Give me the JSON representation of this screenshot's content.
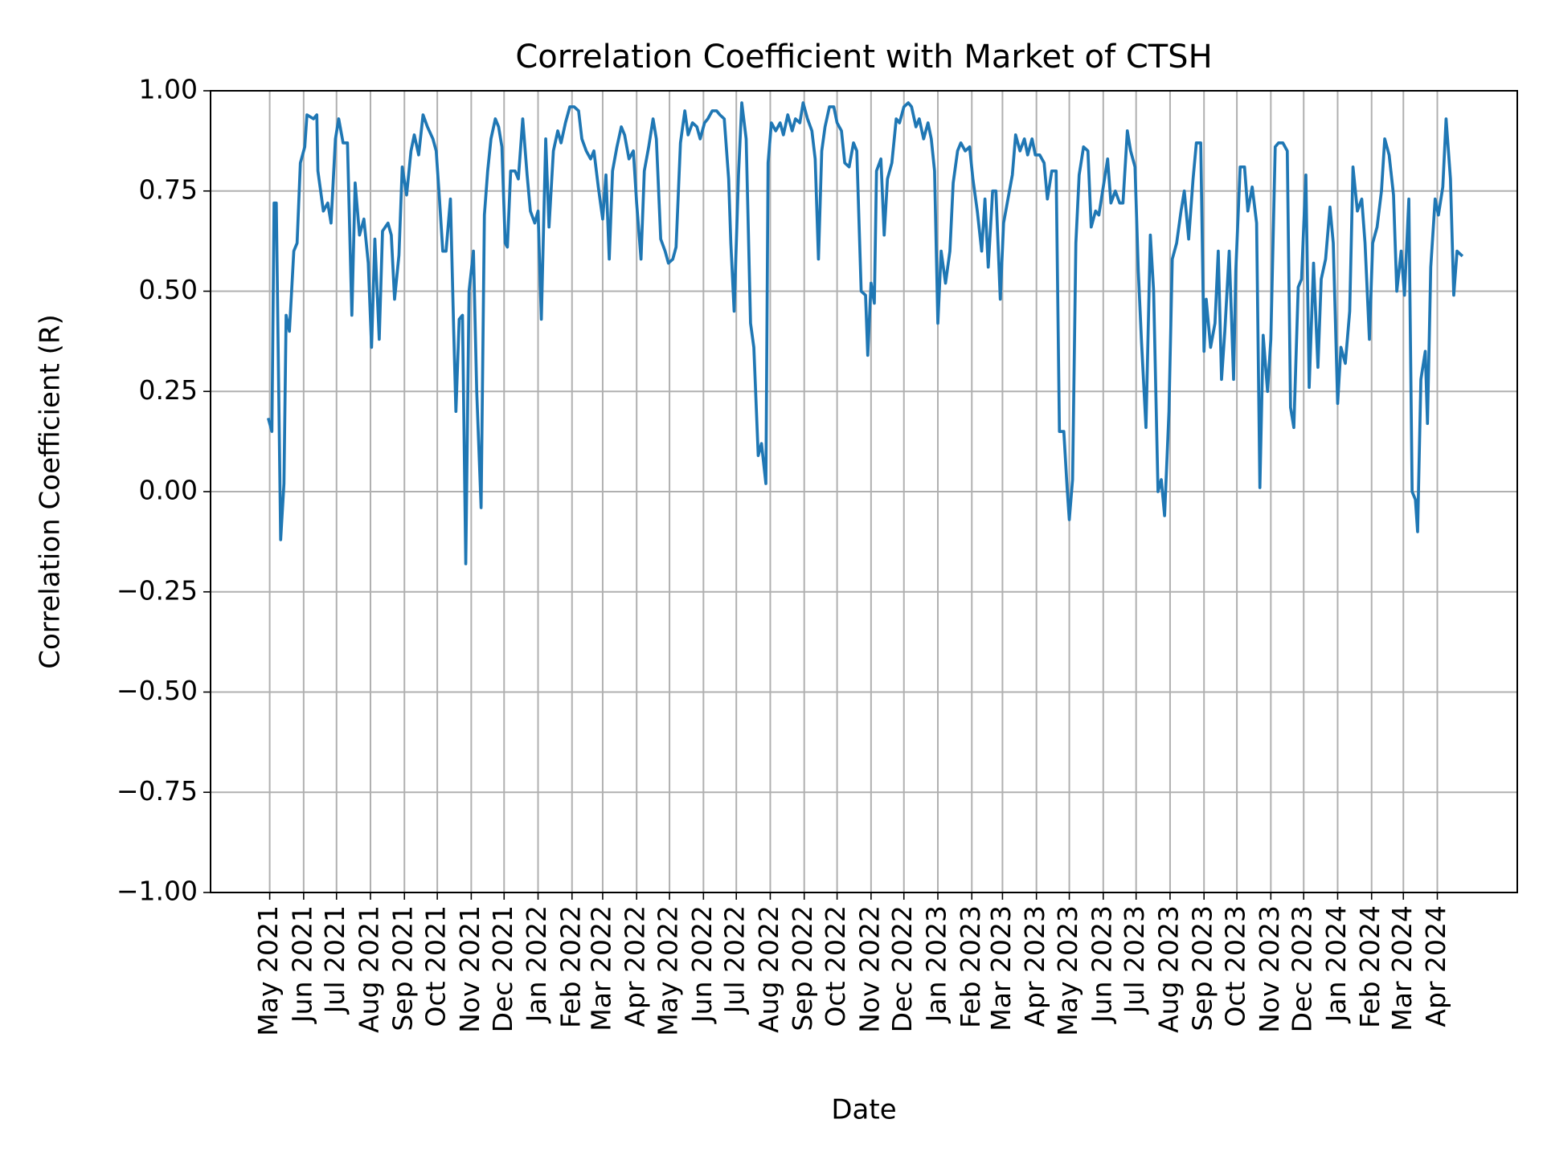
{
  "chart_data": {
    "type": "line",
    "title": "Correlation Coefficient with Market of CTSH",
    "x_label": "Date",
    "y_label": "Correlation Coefficient (R)",
    "color": "#1f77b4",
    "grid": true,
    "xlim": [
      -54,
      1139
    ],
    "ylim": [
      -1,
      1
    ],
    "xticks": [
      {
        "value": 0,
        "label": "May 2021"
      },
      {
        "value": 31,
        "label": "Jun 2021"
      },
      {
        "value": 61,
        "label": "Jul 2021"
      },
      {
        "value": 92,
        "label": "Aug 2021"
      },
      {
        "value": 123,
        "label": "Sep 2021"
      },
      {
        "value": 153,
        "label": "Oct 2021"
      },
      {
        "value": 184,
        "label": "Nov 2021"
      },
      {
        "value": 214,
        "label": "Dec 2021"
      },
      {
        "value": 245,
        "label": "Jan 2022"
      },
      {
        "value": 276,
        "label": "Feb 2022"
      },
      {
        "value": 304,
        "label": "Mar 2022"
      },
      {
        "value": 335,
        "label": "Apr 2022"
      },
      {
        "value": 365,
        "label": "May 2022"
      },
      {
        "value": 396,
        "label": "Jun 2022"
      },
      {
        "value": 426,
        "label": "Jul 2022"
      },
      {
        "value": 457,
        "label": "Aug 2022"
      },
      {
        "value": 488,
        "label": "Sep 2022"
      },
      {
        "value": 518,
        "label": "Oct 2022"
      },
      {
        "value": 549,
        "label": "Nov 2022"
      },
      {
        "value": 579,
        "label": "Dec 2022"
      },
      {
        "value": 610,
        "label": "Jan 2023"
      },
      {
        "value": 641,
        "label": "Feb 2023"
      },
      {
        "value": 669,
        "label": "Mar 2023"
      },
      {
        "value": 700,
        "label": "Apr 2023"
      },
      {
        "value": 730,
        "label": "May 2023"
      },
      {
        "value": 761,
        "label": "Jun 2023"
      },
      {
        "value": 791,
        "label": "Jul 2023"
      },
      {
        "value": 822,
        "label": "Aug 2023"
      },
      {
        "value": 853,
        "label": "Sep 2023"
      },
      {
        "value": 883,
        "label": "Oct 2023"
      },
      {
        "value": 914,
        "label": "Nov 2023"
      },
      {
        "value": 944,
        "label": "Dec 2023"
      },
      {
        "value": 975,
        "label": "Jan 2024"
      },
      {
        "value": 1006,
        "label": "Feb 2024"
      },
      {
        "value": 1035,
        "label": "Mar 2024"
      },
      {
        "value": 1066,
        "label": "Apr 2024"
      }
    ],
    "yticks": [
      {
        "value": -1,
        "label": "−1.00"
      },
      {
        "value": -0.75,
        "label": "−0.75"
      },
      {
        "value": -0.5,
        "label": "−0.50"
      },
      {
        "value": -0.25,
        "label": "−0.25"
      },
      {
        "value": 0,
        "label": "0.00"
      },
      {
        "value": 0.25,
        "label": "0.25"
      },
      {
        "value": 0.5,
        "label": "0.50"
      },
      {
        "value": 0.75,
        "label": "0.75"
      },
      {
        "value": 1,
        "label": "1.00"
      }
    ],
    "x": [
      -1,
      2,
      4,
      6,
      10,
      13,
      15,
      18,
      22,
      25,
      28,
      32,
      34,
      40,
      43,
      44,
      49,
      53,
      56,
      60,
      63,
      67,
      71,
      75,
      78,
      82,
      86,
      90,
      93,
      96,
      100,
      103,
      108,
      111,
      114,
      118,
      121,
      125,
      129,
      132,
      136,
      140,
      144,
      149,
      152,
      155,
      158,
      161,
      165,
      168,
      170,
      173,
      176,
      179,
      182,
      186,
      189,
      193,
      196,
      199,
      202,
      206,
      209,
      212,
      215,
      217,
      220,
      224,
      227,
      231,
      235,
      238,
      242,
      245,
      248,
      252,
      255,
      259,
      263,
      266,
      270,
      274,
      278,
      282,
      285,
      289,
      293,
      296,
      300,
      304,
      307,
      310,
      313,
      317,
      321,
      324,
      328,
      332,
      335,
      339,
      342,
      346,
      350,
      353,
      357,
      361,
      364,
      368,
      371,
      375,
      379,
      382,
      386,
      390,
      393,
      397,
      400,
      404,
      408,
      411,
      415,
      419,
      421,
      424,
      428,
      431,
      435,
      439,
      442,
      446,
      449,
      453,
      455,
      458,
      462,
      466,
      469,
      473,
      477,
      480,
      484,
      487,
      491,
      495,
      498,
      501,
      504,
      507,
      511,
      515,
      518,
      522,
      525,
      529,
      533,
      536,
      540,
      544,
      546,
      549,
      552,
      554,
      558,
      561,
      564,
      568,
      572,
      575,
      579,
      583,
      586,
      590,
      593,
      597,
      601,
      604,
      607,
      610,
      613,
      617,
      621,
      624,
      628,
      631,
      635,
      639,
      642,
      646,
      650,
      653,
      656,
      660,
      663,
      667,
      670,
      674,
      678,
      681,
      685,
      689,
      692,
      696,
      699,
      703,
      707,
      710,
      714,
      718,
      721,
      725,
      728,
      730,
      733,
      736,
      739,
      743,
      747,
      750,
      754,
      757,
      761,
      765,
      768,
      772,
      776,
      779,
      783,
      786,
      790,
      793,
      796,
      800,
      804,
      807,
      811,
      814,
      817,
      821,
      824,
      828,
      832,
      835,
      839,
      843,
      846,
      850,
      853,
      855,
      859,
      863,
      866,
      869,
      872,
      876,
      880,
      882,
      886,
      890,
      893,
      897,
      901,
      904,
      907,
      911,
      914,
      918,
      921,
      925,
      929,
      932,
      935,
      939,
      942,
      946,
      949,
      953,
      957,
      960,
      964,
      968,
      971,
      975,
      978,
      982,
      986,
      989,
      993,
      997,
      1000,
      1004,
      1007,
      1011,
      1015,
      1018,
      1022,
      1026,
      1029,
      1033,
      1036,
      1040,
      1043,
      1046,
      1048,
      1051,
      1055,
      1057,
      1060,
      1064,
      1067,
      1071,
      1074,
      1078,
      1081,
      1084,
      1088
    ],
    "values": [
      0.18,
      0.15,
      0.72,
      0.72,
      -0.12,
      0.02,
      0.44,
      0.4,
      0.6,
      0.62,
      0.82,
      0.86,
      0.94,
      0.93,
      0.94,
      0.8,
      0.7,
      0.72,
      0.67,
      0.88,
      0.93,
      0.87,
      0.87,
      0.44,
      0.77,
      0.64,
      0.68,
      0.57,
      0.36,
      0.63,
      0.38,
      0.65,
      0.67,
      0.64,
      0.48,
      0.59,
      0.81,
      0.74,
      0.85,
      0.89,
      0.84,
      0.94,
      0.91,
      0.88,
      0.85,
      0.73,
      0.6,
      0.6,
      0.73,
      0.4,
      0.2,
      0.43,
      0.44,
      -0.18,
      0.5,
      0.6,
      0.25,
      -0.04,
      0.69,
      0.8,
      0.88,
      0.93,
      0.91,
      0.86,
      0.62,
      0.61,
      0.8,
      0.8,
      0.78,
      0.93,
      0.79,
      0.7,
      0.67,
      0.7,
      0.43,
      0.88,
      0.66,
      0.85,
      0.9,
      0.87,
      0.92,
      0.96,
      0.96,
      0.95,
      0.88,
      0.85,
      0.83,
      0.85,
      0.76,
      0.68,
      0.79,
      0.58,
      0.8,
      0.86,
      0.91,
      0.89,
      0.83,
      0.85,
      0.72,
      0.58,
      0.8,
      0.86,
      0.93,
      0.88,
      0.63,
      0.6,
      0.57,
      0.58,
      0.61,
      0.87,
      0.95,
      0.89,
      0.92,
      0.91,
      0.88,
      0.92,
      0.93,
      0.95,
      0.95,
      0.94,
      0.93,
      0.78,
      0.62,
      0.45,
      0.79,
      0.97,
      0.88,
      0.42,
      0.36,
      0.09,
      0.12,
      0.02,
      0.82,
      0.92,
      0.9,
      0.92,
      0.89,
      0.94,
      0.9,
      0.93,
      0.92,
      0.97,
      0.93,
      0.9,
      0.83,
      0.58,
      0.85,
      0.91,
      0.96,
      0.96,
      0.92,
      0.9,
      0.82,
      0.81,
      0.87,
      0.85,
      0.5,
      0.49,
      0.34,
      0.52,
      0.47,
      0.8,
      0.83,
      0.64,
      0.78,
      0.82,
      0.93,
      0.92,
      0.96,
      0.97,
      0.96,
      0.91,
      0.93,
      0.88,
      0.92,
      0.88,
      0.8,
      0.42,
      0.6,
      0.52,
      0.6,
      0.77,
      0.85,
      0.87,
      0.85,
      0.86,
      0.78,
      0.7,
      0.6,
      0.73,
      0.56,
      0.75,
      0.75,
      0.48,
      0.67,
      0.73,
      0.79,
      0.89,
      0.85,
      0.88,
      0.84,
      0.88,
      0.84,
      0.84,
      0.82,
      0.73,
      0.8,
      0.8,
      0.15,
      0.15,
      0.01,
      -0.07,
      0.03,
      0.62,
      0.79,
      0.86,
      0.85,
      0.66,
      0.7,
      0.69,
      0.76,
      0.83,
      0.72,
      0.75,
      0.72,
      0.72,
      0.9,
      0.85,
      0.81,
      0.55,
      0.37,
      0.16,
      0.64,
      0.5,
      0.0,
      0.03,
      -0.06,
      0.2,
      0.58,
      0.62,
      0.7,
      0.75,
      0.63,
      0.78,
      0.87,
      0.87,
      0.35,
      0.48,
      0.36,
      0.42,
      0.6,
      0.28,
      0.4,
      0.6,
      0.28,
      0.55,
      0.81,
      0.81,
      0.7,
      0.76,
      0.67,
      0.01,
      0.39,
      0.25,
      0.38,
      0.86,
      0.87,
      0.87,
      0.85,
      0.21,
      0.16,
      0.51,
      0.53,
      0.79,
      0.26,
      0.57,
      0.31,
      0.53,
      0.58,
      0.71,
      0.62,
      0.22,
      0.36,
      0.32,
      0.45,
      0.81,
      0.7,
      0.73,
      0.62,
      0.38,
      0.62,
      0.66,
      0.75,
      0.88,
      0.84,
      0.74,
      0.5,
      0.6,
      0.49,
      0.73,
      0.0,
      -0.02,
      -0.1,
      0.28,
      0.35,
      0.17,
      0.56,
      0.73,
      0.69,
      0.76,
      0.93,
      0.78,
      0.49,
      0.6,
      0.59
    ]
  }
}
